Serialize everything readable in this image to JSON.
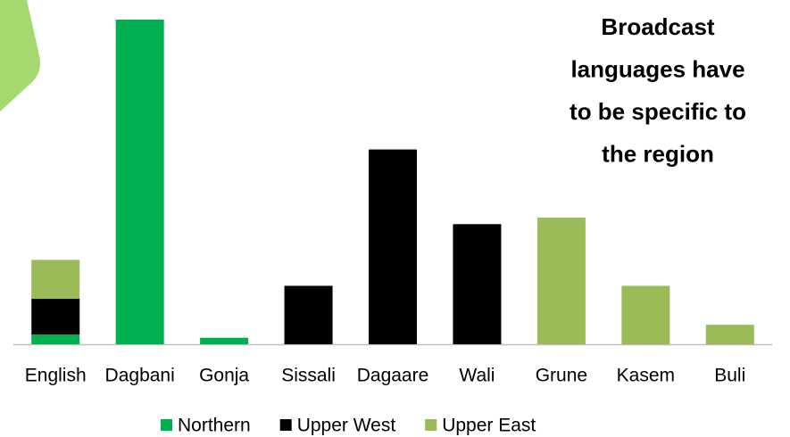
{
  "chart_data": {
    "type": "stacked_bar",
    "annotation": [
      "Broadcast",
      "languages have",
      "to be specific to",
      "the region"
    ],
    "categories": [
      "English",
      "Dagbani",
      "Gonja",
      "Sissali",
      "Dagaare",
      "Wali",
      "Grune",
      "Kasem",
      "Buli"
    ],
    "series": [
      {
        "name": "Northern",
        "color": "#00b050",
        "values": [
          3,
          100,
          2,
          null,
          null,
          null,
          null,
          null,
          null
        ]
      },
      {
        "name": "Upper West",
        "color": "#000000",
        "values": [
          11,
          null,
          null,
          18,
          60,
          37,
          null,
          null,
          null
        ]
      },
      {
        "name": "Upper East",
        "color": "#9bbb59",
        "values": [
          12,
          null,
          null,
          null,
          null,
          null,
          39,
          18,
          6
        ]
      }
    ],
    "ylim": [
      0,
      100
    ]
  }
}
